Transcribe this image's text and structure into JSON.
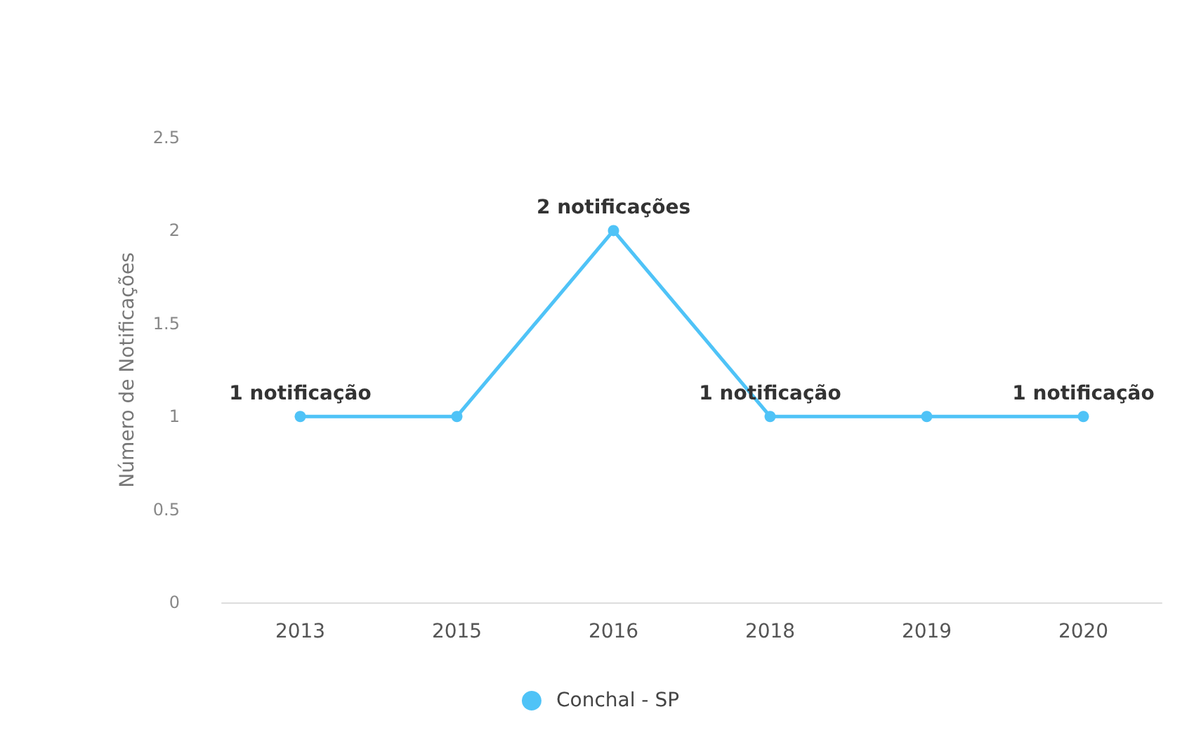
{
  "chart_data": {
    "type": "line",
    "ylabel": "Número de Notificações",
    "categories": [
      "2013",
      "2015",
      "2016",
      "2018",
      "2019",
      "2020"
    ],
    "series": [
      {
        "name": "Conchal - SP",
        "color": "#4fc3f7",
        "values": [
          1,
          1,
          2,
          1,
          1,
          1
        ],
        "value_labels": [
          "1 notificação",
          null,
          "2 notificações",
          "1 notificação",
          null,
          "1 notificação"
        ]
      }
    ],
    "ylim": [
      0,
      2.5
    ],
    "yticks": [
      0,
      0.5,
      1,
      1.5,
      2,
      2.5
    ],
    "grid": false,
    "legend": "bottom",
    "marker": "circle",
    "line_style": "solid"
  }
}
